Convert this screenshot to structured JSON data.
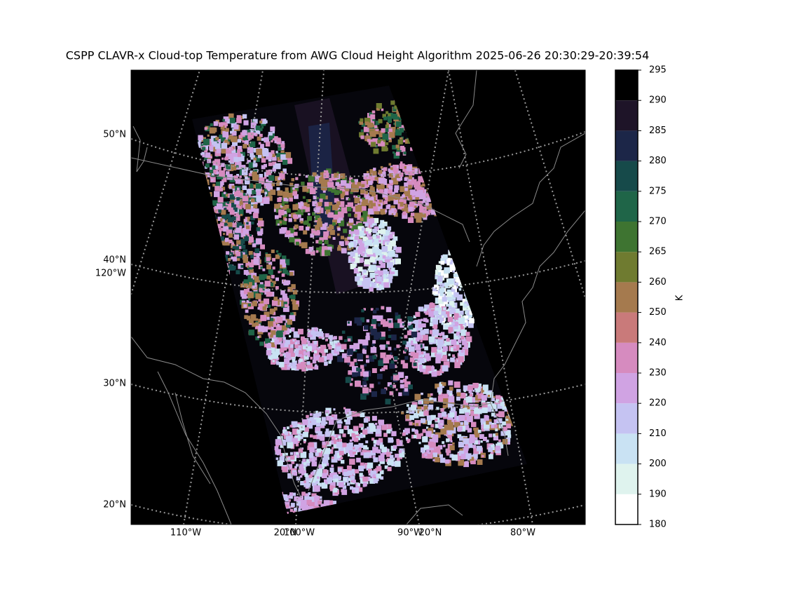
{
  "title": "CSPP CLAVR-x Cloud-top Temperature from AWG Cloud Height Algorithm 2025-06-26 20:30:29-20:39:54",
  "map": {
    "lat_labels": [
      "50°N",
      "40°N",
      "120°W",
      "30°N",
      "20°N"
    ],
    "lon_labels": [
      "110°W",
      "20°N",
      "100°W",
      "90°W",
      "20°N",
      "80°W"
    ]
  },
  "colorbar": {
    "label": "K",
    "ticks": [
      180,
      190,
      200,
      210,
      220,
      230,
      240,
      250,
      260,
      265,
      270,
      275,
      280,
      285,
      290,
      295
    ],
    "colors": [
      "#ffffff",
      "#dff3ee",
      "#c9e2f3",
      "#c5c3f2",
      "#d0a3e3",
      "#d68bbf",
      "#c97a7a",
      "#a57a4e",
      "#6f7b30",
      "#3e7431",
      "#1f6548",
      "#164a4a",
      "#1c2648",
      "#1e1428",
      "#000000"
    ]
  }
}
